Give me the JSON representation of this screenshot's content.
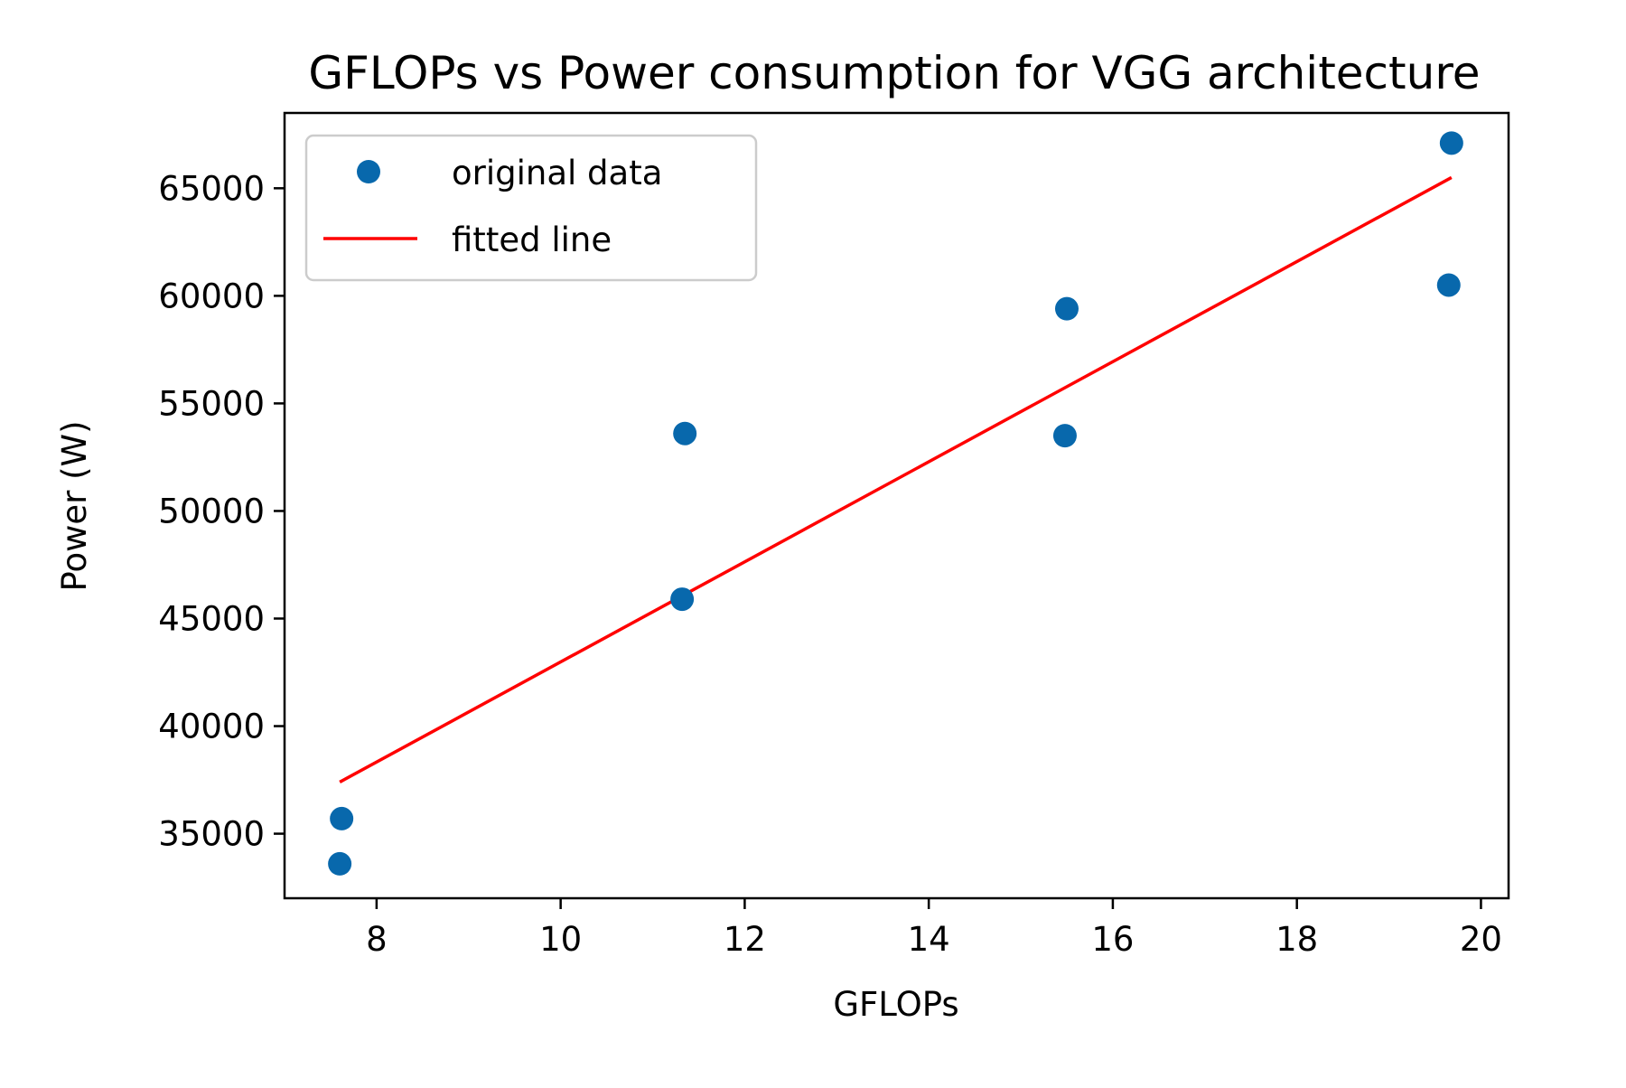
{
  "chart_data": {
    "type": "scatter",
    "title": "GFLOPs vs Power consumption for VGG architecture",
    "xlabel": "GFLOPs",
    "ylabel": "Power (W)",
    "xlim": [
      7.0,
      20.3
    ],
    "ylim": [
      32000,
      68500
    ],
    "xticks": [
      8,
      10,
      12,
      14,
      16,
      18,
      20
    ],
    "yticks": [
      35000,
      40000,
      45000,
      50000,
      55000,
      60000,
      65000
    ],
    "xtick_labels": [
      "8",
      "10",
      "12",
      "14",
      "16",
      "18",
      "20"
    ],
    "ytick_labels": [
      "35000",
      "40000",
      "45000",
      "50000",
      "55000",
      "60000",
      "65000"
    ],
    "grid": false,
    "legend_position": "upper left",
    "colors": {
      "points": "#0868ac",
      "fit_line": "#ff0000"
    },
    "series": [
      {
        "name": "original data",
        "kind": "points",
        "points": [
          {
            "x": 7.6,
            "y": 33600
          },
          {
            "x": 7.62,
            "y": 35700
          },
          {
            "x": 11.32,
            "y": 45900
          },
          {
            "x": 11.35,
            "y": 53600
          },
          {
            "x": 15.48,
            "y": 53500
          },
          {
            "x": 15.5,
            "y": 59400
          },
          {
            "x": 19.65,
            "y": 60500
          },
          {
            "x": 19.68,
            "y": 67100
          }
        ]
      },
      {
        "name": "fitted line",
        "kind": "line",
        "points": [
          {
            "x": 7.6,
            "y": 37400
          },
          {
            "x": 19.68,
            "y": 65500
          }
        ]
      }
    ]
  }
}
